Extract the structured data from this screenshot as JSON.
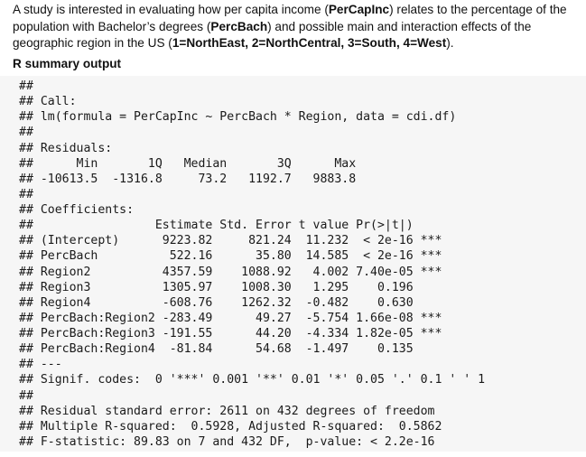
{
  "intro": {
    "p1": "A study is interested in evaluating how per capita income (",
    "var1": "PerCapInc",
    "p2": ") relates to the percentage of the population with Bachelor’s degrees (",
    "var2": "PercBach",
    "p3": ") and possible main and interaction effects of the geographic region in the US (",
    "regions": "1=NorthEast, 2=NorthCentral, 3=South, 4=West",
    "p4": ")."
  },
  "section_label": "R summary output",
  "r_output": [
    "##",
    "## Call:",
    "## lm(formula = PerCapInc ~ PercBach * Region, data = cdi.df)",
    "##",
    "## Residuals:",
    "##      Min       1Q   Median       3Q      Max",
    "## -10613.5  -1316.8     73.2   1192.7   9883.8",
    "##",
    "## Coefficients:",
    "##                 Estimate Std. Error t value Pr(>|t|)",
    "## (Intercept)      9223.82     821.24  11.232  < 2e-16 ***",
    "## PercBach          522.16      35.80  14.585  < 2e-16 ***",
    "## Region2          4357.59    1088.92   4.002 7.40e-05 ***",
    "## Region3          1305.97    1008.30   1.295    0.196",
    "## Region4          -608.76    1262.32  -0.482    0.630",
    "## PercBach:Region2 -283.49      49.27  -5.754 1.66e-08 ***",
    "## PercBach:Region3 -191.55      44.20  -4.334 1.82e-05 ***",
    "## PercBach:Region4  -81.84      54.68  -1.497    0.135",
    "## ---",
    "## Signif. codes:  0 '***' 0.001 '**' 0.01 '*' 0.05 '.' 0.1 ' ' 1",
    "##",
    "## Residual standard error: 2611 on 432 degrees of freedom",
    "## Multiple R-squared:  0.5928, Adjusted R-squared:  0.5862",
    "## F-statistic: 89.83 on 7 and 432 DF,  p-value: < 2.2e-16"
  ]
}
